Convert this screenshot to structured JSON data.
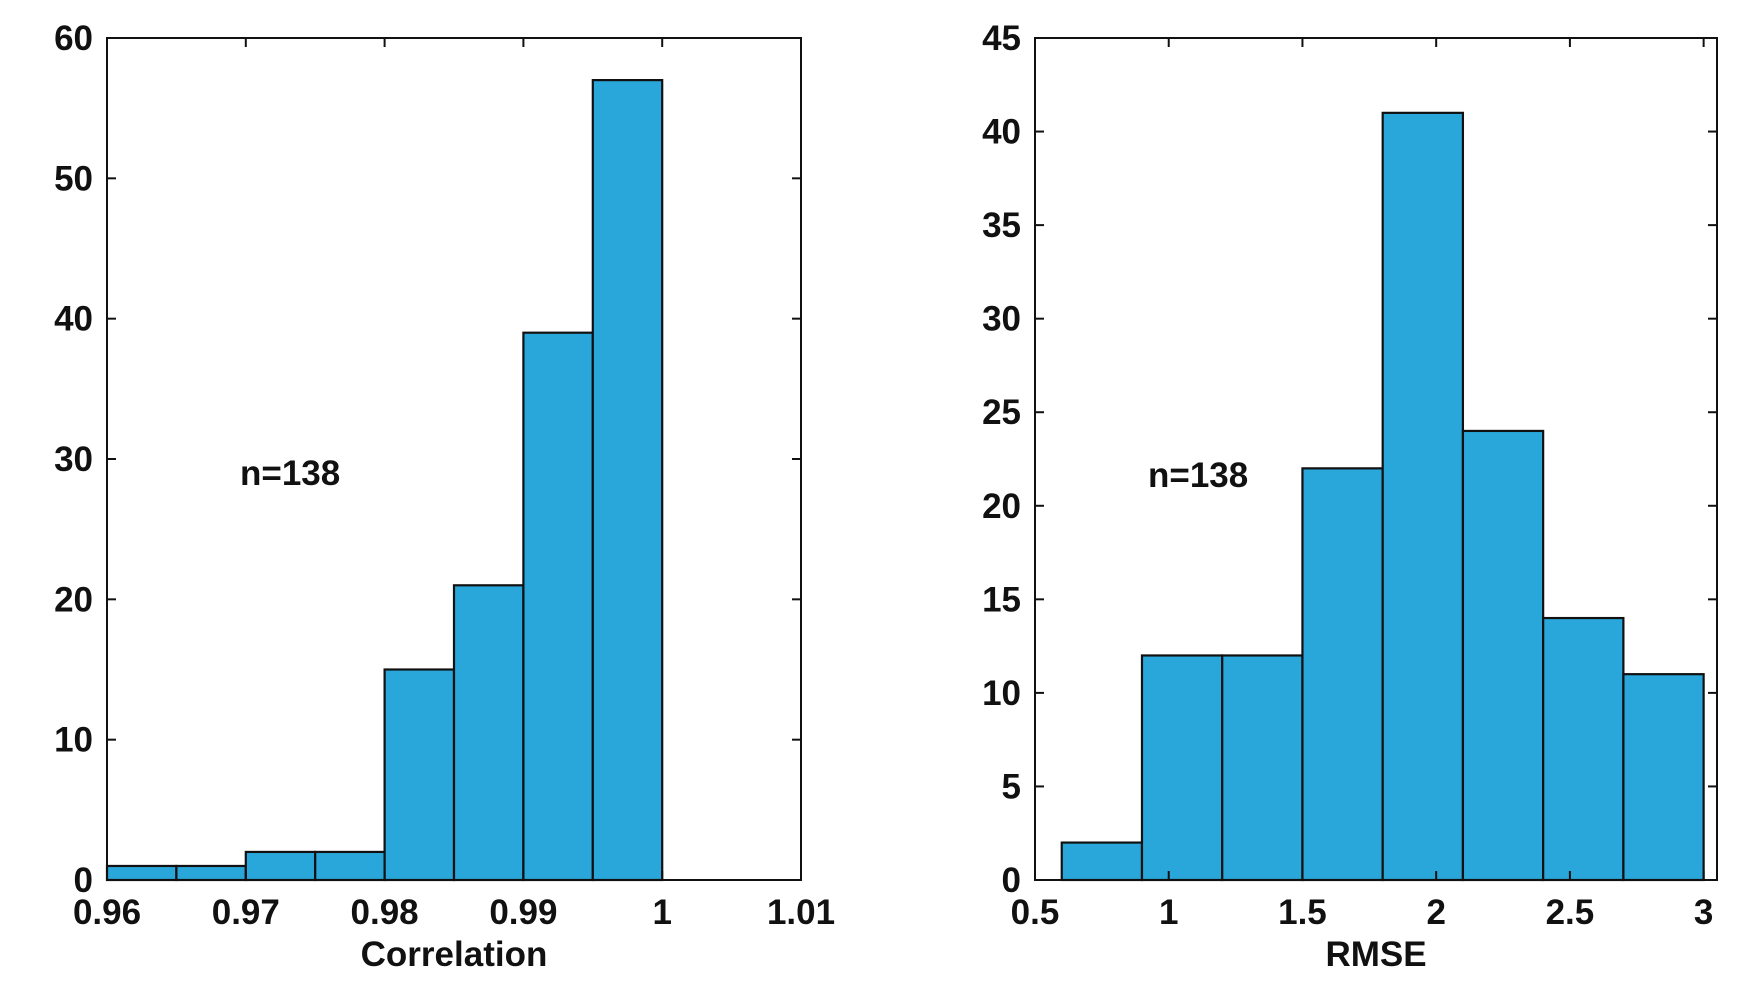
{
  "colors": {
    "bar_fill": "#29a7db",
    "bar_stroke": "#111111",
    "axis": "#111111"
  },
  "chart_data": [
    {
      "type": "bar",
      "subtype": "histogram",
      "xlabel": "Correlation",
      "ylabel": "",
      "annotation": "n=138",
      "xlim": [
        0.96,
        1.01
      ],
      "ylim": [
        0,
        60
      ],
      "xticks": [
        0.96,
        0.97,
        0.98,
        0.99,
        1,
        1.01
      ],
      "xtick_labels": [
        "0.96",
        "0.97",
        "0.98",
        "0.99",
        "1",
        "1.01"
      ],
      "yticks": [
        0,
        10,
        20,
        30,
        40,
        50,
        60
      ],
      "ytick_labels": [
        "0",
        "10",
        "20",
        "30",
        "40",
        "50",
        "60"
      ],
      "grid": false,
      "bins": [
        {
          "x0": 0.96,
          "x1": 0.965,
          "count": 1
        },
        {
          "x0": 0.965,
          "x1": 0.97,
          "count": 1
        },
        {
          "x0": 0.97,
          "x1": 0.975,
          "count": 2
        },
        {
          "x0": 0.975,
          "x1": 0.98,
          "count": 2
        },
        {
          "x0": 0.98,
          "x1": 0.985,
          "count": 15
        },
        {
          "x0": 0.985,
          "x1": 0.99,
          "count": 21
        },
        {
          "x0": 0.99,
          "x1": 0.995,
          "count": 39
        },
        {
          "x0": 0.995,
          "x1": 1.0,
          "count": 57
        }
      ]
    },
    {
      "type": "bar",
      "subtype": "histogram",
      "xlabel": "RMSE",
      "ylabel": "",
      "annotation": "n=138",
      "xlim": [
        0.5,
        3.05
      ],
      "ylim": [
        0,
        45
      ],
      "xticks": [
        0.5,
        1,
        1.5,
        2,
        2.5,
        3
      ],
      "xtick_labels": [
        "0.5",
        "1",
        "1.5",
        "2",
        "2.5",
        "3"
      ],
      "yticks": [
        0,
        5,
        10,
        15,
        20,
        25,
        30,
        35,
        40,
        45
      ],
      "ytick_labels": [
        "0",
        "5",
        "10",
        "15",
        "20",
        "25",
        "30",
        "35",
        "40",
        "45"
      ],
      "grid": false,
      "bins": [
        {
          "x0": 0.6,
          "x1": 0.9,
          "count": 2
        },
        {
          "x0": 0.9,
          "x1": 1.2,
          "count": 12
        },
        {
          "x0": 1.2,
          "x1": 1.5,
          "count": 12
        },
        {
          "x0": 1.5,
          "x1": 1.8,
          "count": 22
        },
        {
          "x0": 1.8,
          "x1": 2.1,
          "count": 41
        },
        {
          "x0": 2.1,
          "x1": 2.4,
          "count": 24
        },
        {
          "x0": 2.4,
          "x1": 2.7,
          "count": 14
        },
        {
          "x0": 2.7,
          "x1": 3.0,
          "count": 11
        }
      ]
    }
  ]
}
